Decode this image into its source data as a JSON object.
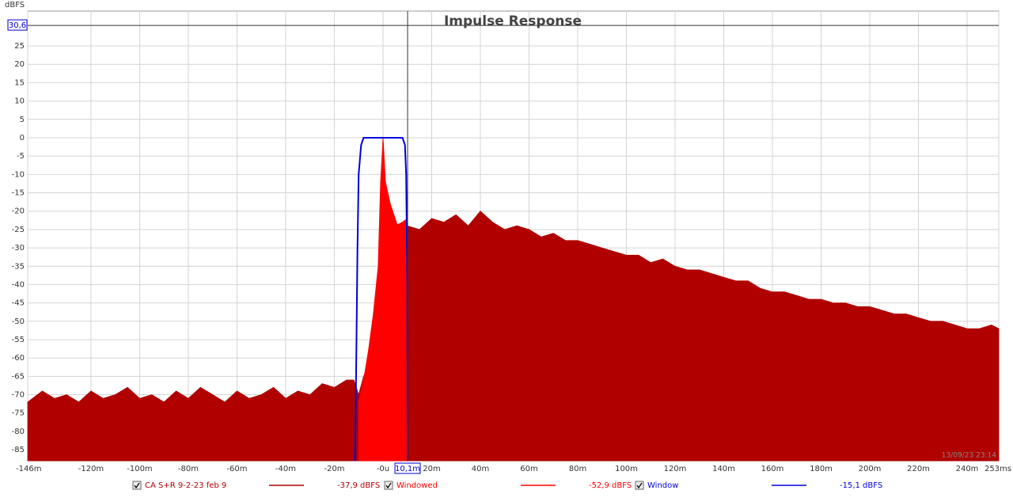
{
  "chart_data": {
    "type": "area",
    "title": "Impulse Response",
    "y_unit": "dBFS",
    "timestamp": "13/09/23 23:14",
    "xlim": [
      -146,
      253
    ],
    "ylim": [
      -88,
      34.5
    ],
    "xticks": [
      {
        "value": -146,
        "label": "-146m"
      },
      {
        "value": -120,
        "label": "-120m"
      },
      {
        "value": -100,
        "label": "-100m"
      },
      {
        "value": -80,
        "label": "-80m"
      },
      {
        "value": -60,
        "label": "-60m"
      },
      {
        "value": -40,
        "label": "-40m"
      },
      {
        "value": -20,
        "label": "-20m"
      },
      {
        "value": 0,
        "label": "-0u"
      },
      {
        "value": 20,
        "label": "20m"
      },
      {
        "value": 40,
        "label": "40m"
      },
      {
        "value": 60,
        "label": "60m"
      },
      {
        "value": 80,
        "label": "80m"
      },
      {
        "value": 100,
        "label": "100m"
      },
      {
        "value": 120,
        "label": "120m"
      },
      {
        "value": 140,
        "label": "140m"
      },
      {
        "value": 160,
        "label": "160m"
      },
      {
        "value": 180,
        "label": "180m"
      },
      {
        "value": 200,
        "label": "200m"
      },
      {
        "value": 220,
        "label": "220m"
      },
      {
        "value": 240,
        "label": "240m"
      },
      {
        "value": 253,
        "label": "253ms"
      }
    ],
    "yticks": [
      25,
      20,
      15,
      10,
      5,
      0,
      -5,
      -10,
      -15,
      -20,
      -25,
      -30,
      -35,
      -40,
      -45,
      -50,
      -55,
      -60,
      -65,
      -70,
      -75,
      -80,
      -85
    ],
    "grid": true,
    "cursor": {
      "x": 10.1,
      "x_label": "10,1m",
      "y": 30.6,
      "y_label": "30,6"
    },
    "series": [
      {
        "name": "CA S+R 9-2-23 feb 9",
        "readout": "-37,9 dBFS",
        "color": "#b00000",
        "fill": true,
        "x": [
          -146,
          -140,
          -135,
          -130,
          -125,
          -120,
          -115,
          -110,
          -105,
          -100,
          -95,
          -90,
          -85,
          -80,
          -75,
          -70,
          -65,
          -60,
          -55,
          -50,
          -45,
          -40,
          -35,
          -30,
          -25,
          -20,
          -15,
          -12,
          -10,
          -8,
          -6,
          -4,
          -2,
          -1,
          0,
          1,
          3,
          5,
          8,
          10,
          15,
          20,
          25,
          30,
          35,
          40,
          45,
          50,
          55,
          60,
          65,
          70,
          75,
          80,
          85,
          90,
          95,
          100,
          105,
          110,
          115,
          120,
          125,
          130,
          135,
          140,
          145,
          150,
          155,
          160,
          165,
          170,
          175,
          180,
          185,
          190,
          195,
          200,
          205,
          210,
          215,
          220,
          225,
          230,
          235,
          240,
          245,
          250,
          253
        ],
        "values": [
          -72,
          -69,
          -71,
          -70,
          -72,
          -69,
          -71,
          -70,
          -68,
          -71,
          -70,
          -72,
          -69,
          -71,
          -68,
          -70,
          -72,
          -69,
          -71,
          -70,
          -68,
          -71,
          -69,
          -70,
          -67,
          -68,
          -66,
          -66,
          -70,
          -65,
          -62,
          -55,
          -45,
          -30,
          0,
          -15,
          -22,
          -24,
          -23,
          -24,
          -25,
          -22,
          -23,
          -21,
          -24,
          -20,
          -23,
          -25,
          -24,
          -25,
          -27,
          -26,
          -28,
          -28,
          -29,
          -30,
          -31,
          -32,
          -32,
          -34,
          -33,
          -35,
          -36,
          -36,
          -37,
          -38,
          -39,
          -39,
          -41,
          -42,
          -42,
          -43,
          -44,
          -44,
          -45,
          -45,
          -46,
          -46,
          -47,
          -48,
          -48,
          -49,
          -50,
          -50,
          -51,
          -52,
          -52,
          -51,
          -52
        ]
      },
      {
        "name": "Windowed",
        "readout": "-52,9 dBFS",
        "color": "#ff0000",
        "fill": true,
        "x": [
          -10,
          -8,
          -6,
          -4,
          -2,
          -1,
          0,
          1,
          3,
          6,
          10
        ],
        "values": [
          -72,
          -66,
          -58,
          -48,
          -35,
          -12,
          0,
          -12,
          -18,
          -24,
          -22
        ]
      },
      {
        "name": "Window",
        "readout": "-15,1 dBFS",
        "color": "#0000dd",
        "fill": false,
        "x": [
          -11.5,
          -11,
          -10.5,
          -10,
          -9,
          -8,
          -6,
          0,
          6,
          8,
          9,
          9.5,
          10,
          10.1
        ],
        "values": [
          -88,
          -60,
          -30,
          -10,
          -2,
          0,
          0,
          0,
          0,
          0,
          -2,
          -10,
          -40,
          -88
        ]
      }
    ]
  }
}
